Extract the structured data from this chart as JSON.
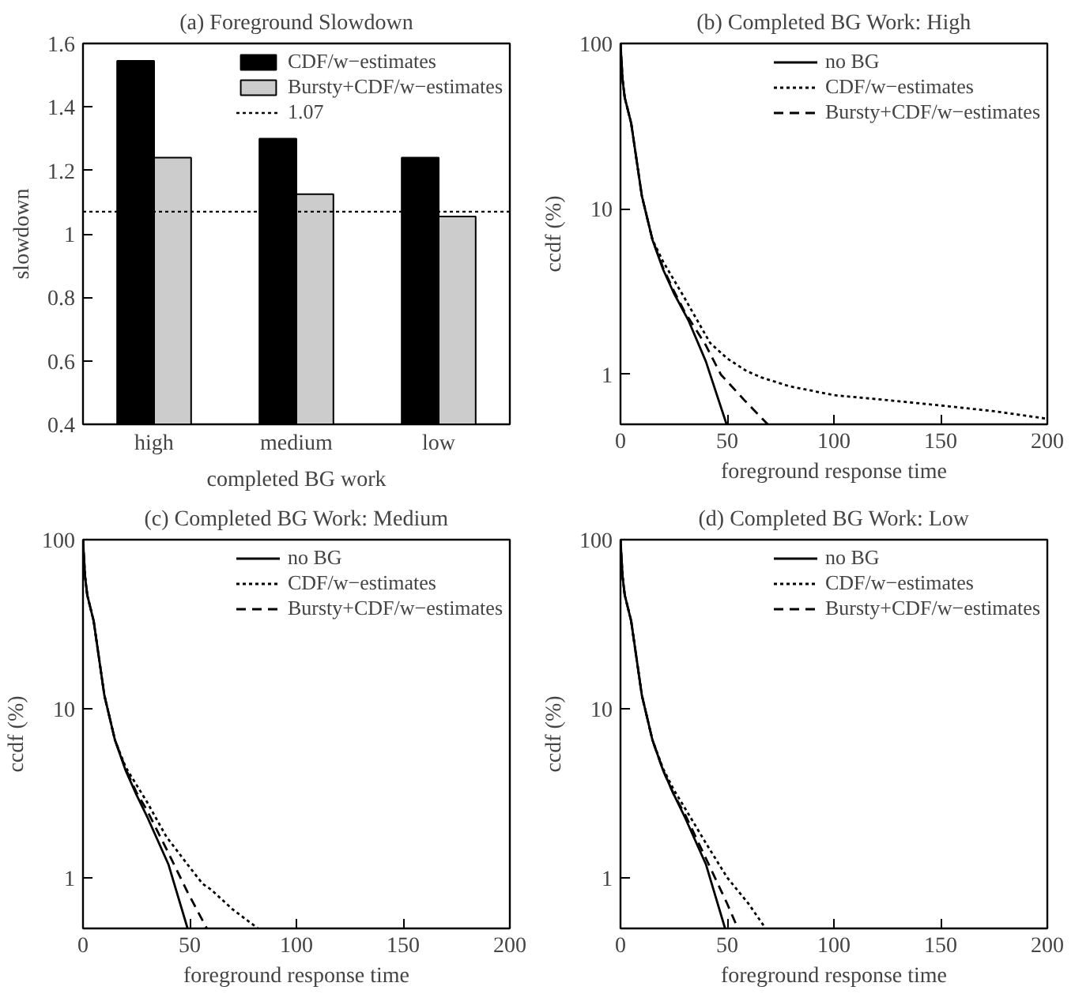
{
  "chart_data": [
    {
      "type": "bar",
      "title": "(a) Foreground Slowdown",
      "xlabel": "completed BG work",
      "ylabel": "slowdown",
      "categories": [
        "high",
        "medium",
        "low"
      ],
      "series": [
        {
          "name": "CDF/w−estimates",
          "color": "#000000",
          "values": [
            1.545,
            1.3,
            1.24
          ]
        },
        {
          "name": "Bursty+CDF/w−estimates",
          "color": "#cccccc",
          "values": [
            1.24,
            1.125,
            1.055
          ]
        }
      ],
      "ylim": [
        0.4,
        1.6
      ],
      "yticks": [
        0.4,
        0.6,
        0.8,
        1,
        1.2,
        1.4,
        1.6
      ],
      "ref_lines": [
        {
          "axis": "y",
          "value": 1.07,
          "label": "1.07",
          "line_style": "dotted",
          "color": "#000000"
        }
      ],
      "legend": "top right"
    },
    {
      "type": "line",
      "title": "(b) Completed BG Work: High",
      "xlabel": "foreground response time",
      "ylabel": "ccdf (%)",
      "log": "y",
      "xlim": [
        0,
        200
      ],
      "xticks": [
        0,
        50,
        100,
        150,
        200
      ],
      "ylim": [
        0.5,
        100
      ],
      "yticks": [
        1,
        10,
        100
      ],
      "legend": "top right",
      "series": [
        {
          "name": "no BG",
          "color": "#000000",
          "line_style": "solid",
          "x": [
            0,
            1,
            2,
            5,
            8,
            10,
            15,
            20,
            25,
            32,
            40,
            49.7
          ],
          "values": [
            100,
            60,
            47,
            33,
            18,
            12,
            6.5,
            4.3,
            3.1,
            2.1,
            1.2,
            0.5
          ]
        },
        {
          "name": "CDF/w−estimates",
          "color": "#000000",
          "line_style": "dotted",
          "x": [
            0,
            1,
            2,
            5,
            8,
            10,
            15,
            20,
            30,
            42,
            50,
            59,
            66,
            79,
            100,
            125,
            150,
            175,
            200
          ],
          "values": [
            100,
            60,
            47,
            33,
            18,
            12,
            6.5,
            4.8,
            2.9,
            1.55,
            1.25,
            1.05,
            0.96,
            0.85,
            0.75,
            0.7,
            0.65,
            0.6,
            0.54
          ]
        },
        {
          "name": "Bursty+CDF/w−estimates",
          "color": "#000000",
          "line_style": "dashed",
          "x": [
            0,
            1,
            2,
            5,
            8,
            10,
            15,
            20,
            25,
            30,
            40,
            47,
            58,
            69
          ],
          "values": [
            100,
            60,
            47,
            33,
            18,
            12,
            6.5,
            4.4,
            3.2,
            2.4,
            1.5,
            1.0,
            0.7,
            0.5
          ]
        }
      ]
    },
    {
      "type": "line",
      "title": "(c) Completed BG Work: Medium",
      "xlabel": "foreground response time",
      "ylabel": "ccdf (%)",
      "log": "y",
      "xlim": [
        0,
        200
      ],
      "xticks": [
        0,
        50,
        100,
        150,
        200
      ],
      "ylim": [
        0.5,
        100
      ],
      "yticks": [
        1,
        10,
        100
      ],
      "legend": "top right",
      "series": [
        {
          "name": "no BG",
          "color": "#000000",
          "line_style": "solid",
          "x": [
            0,
            1,
            2,
            5,
            8,
            10,
            15,
            20,
            25,
            30,
            40,
            49
          ],
          "values": [
            100,
            60,
            47,
            33,
            18,
            12,
            6.5,
            4.3,
            3.1,
            2.3,
            1.2,
            0.5
          ]
        },
        {
          "name": "CDF/w−estimates",
          "color": "#000000",
          "line_style": "dotted",
          "x": [
            0,
            1,
            2,
            5,
            8,
            10,
            15,
            20,
            30,
            39,
            50,
            56,
            60,
            70,
            82
          ],
          "values": [
            100,
            60,
            47,
            33,
            18,
            12,
            6.5,
            4.5,
            2.8,
            1.75,
            1.15,
            0.92,
            0.85,
            0.65,
            0.5
          ]
        },
        {
          "name": "Bursty+CDF/w−estimates",
          "color": "#000000",
          "line_style": "dashed",
          "x": [
            0,
            1,
            2,
            5,
            8,
            10,
            15,
            20,
            25,
            30,
            40,
            49,
            58
          ],
          "values": [
            100,
            60,
            47,
            33,
            18,
            12,
            6.5,
            4.4,
            3.2,
            2.5,
            1.4,
            0.82,
            0.5
          ]
        }
      ]
    },
    {
      "type": "line",
      "title": "(d) Completed BG Work: Low",
      "xlabel": "foreground response time",
      "ylabel": "ccdf (%)",
      "log": "y",
      "xlim": [
        0,
        200
      ],
      "xticks": [
        0,
        50,
        100,
        150,
        200
      ],
      "ylim": [
        0.5,
        100
      ],
      "yticks": [
        1,
        10,
        100
      ],
      "legend": "top right",
      "series": [
        {
          "name": "no BG",
          "color": "#000000",
          "line_style": "solid",
          "x": [
            0,
            1,
            2,
            5,
            8,
            10,
            15,
            20,
            25,
            30,
            40,
            49
          ],
          "values": [
            100,
            60,
            47,
            33,
            18,
            12,
            6.5,
            4.3,
            3.1,
            2.3,
            1.2,
            0.5
          ]
        },
        {
          "name": "CDF/w−estimates",
          "color": "#000000",
          "line_style": "dotted",
          "x": [
            0,
            1,
            2,
            5,
            8,
            10,
            15,
            20,
            25,
            30,
            40,
            50,
            60,
            68
          ],
          "values": [
            100,
            60,
            47,
            33,
            18,
            12,
            6.5,
            4.4,
            3.3,
            2.6,
            1.6,
            1.0,
            0.7,
            0.5
          ]
        },
        {
          "name": "Bursty+CDF/w−estimates",
          "color": "#000000",
          "line_style": "dashed",
          "x": [
            0,
            1,
            2,
            5,
            8,
            10,
            15,
            20,
            25,
            30,
            40,
            50,
            55
          ],
          "values": [
            100,
            60,
            47,
            33,
            18,
            12,
            6.5,
            4.3,
            3.1,
            2.4,
            1.3,
            0.7,
            0.5
          ]
        }
      ]
    }
  ]
}
